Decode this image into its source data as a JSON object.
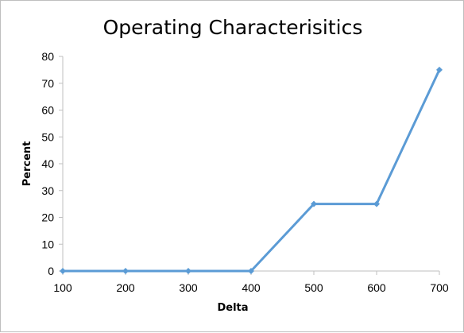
{
  "chart_data": {
    "type": "line",
    "title": "Operating Characterisitics",
    "xlabel": "Delta",
    "ylabel": "Percent",
    "x": [
      100,
      200,
      300,
      400,
      500,
      600,
      700
    ],
    "series": [
      {
        "values": [
          0,
          0,
          0,
          0,
          25,
          25,
          75
        ]
      }
    ],
    "xlim": [
      100,
      700
    ],
    "ylim": [
      0,
      80
    ],
    "x_ticks": [
      "100",
      "200",
      "300",
      "400",
      "500",
      "600",
      "700"
    ],
    "y_ticks": [
      "0",
      "10",
      "20",
      "30",
      "40",
      "50",
      "60",
      "70",
      "80"
    ],
    "grid": false,
    "legend": "none",
    "colors": {
      "series": "#5b9bd5",
      "axis": "#bfbfbf"
    },
    "marker": "diamond"
  }
}
